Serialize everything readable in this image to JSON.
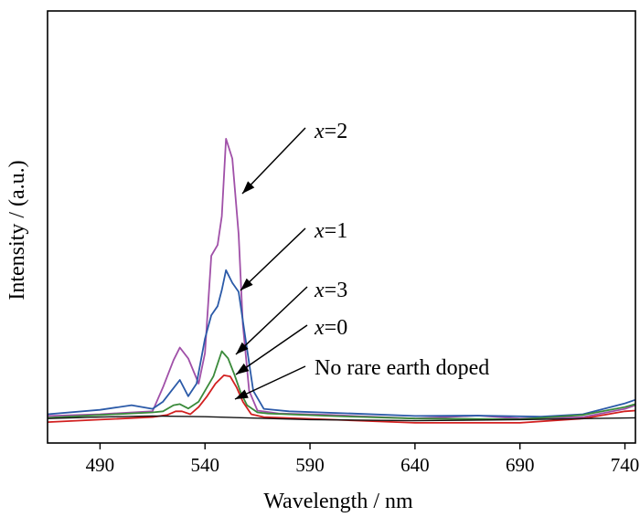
{
  "chart_data": {
    "type": "line",
    "xlabel": "Wavelength / nm",
    "ylabel": "Intensity / (a.u.)",
    "xlim": [
      465,
      745
    ],
    "ylim": [
      0,
      120
    ],
    "xticks": [
      490,
      540,
      590,
      640,
      690,
      740
    ],
    "grid": false,
    "legend": "none",
    "series": [
      {
        "name": "x=2",
        "color": "#a050a8",
        "x": [
          465,
          490,
          515,
          520,
          525,
          528,
          532,
          537,
          540,
          543,
          546,
          548,
          550,
          553,
          556,
          558,
          561,
          565,
          575,
          600,
          640,
          670,
          690,
          720,
          740,
          745
        ],
        "y": [
          7.5,
          8.0,
          8.8,
          15.5,
          23.0,
          26.5,
          23.5,
          16.5,
          25.0,
          52.0,
          55.0,
          63.0,
          84.5,
          79.0,
          58.0,
          33.0,
          14.5,
          9.0,
          8.2,
          7.8,
          6.8,
          7.6,
          6.8,
          7.2,
          9.5,
          10.5
        ]
      },
      {
        "name": "x=1",
        "color": "#2b5aa8",
        "x": [
          465,
          490,
          505,
          515,
          520,
          524,
          528,
          532,
          536,
          540,
          543,
          546,
          548,
          550,
          553,
          556,
          559,
          563,
          568,
          580,
          610,
          640,
          670,
          700,
          720,
          740,
          745
        ],
        "y": [
          8.0,
          9.2,
          10.5,
          9.5,
          11.5,
          14.5,
          17.5,
          13.0,
          16.5,
          29.0,
          35.5,
          38.0,
          42.5,
          48.0,
          44.5,
          42.0,
          30.0,
          14.5,
          9.5,
          8.8,
          8.2,
          7.5,
          7.6,
          7.3,
          8.0,
          11.0,
          12.0
        ]
      },
      {
        "name": "x=3",
        "color": "#3a8a3a",
        "x": [
          465,
          490,
          515,
          520,
          525,
          528,
          532,
          537,
          540,
          544,
          548,
          551,
          554,
          557,
          560,
          565,
          570,
          600,
          640,
          690,
          720,
          740,
          745
        ],
        "y": [
          7.0,
          7.8,
          8.5,
          8.8,
          10.5,
          10.8,
          9.6,
          11.5,
          14.5,
          18.5,
          25.5,
          23.5,
          19.0,
          14.0,
          10.5,
          8.5,
          8.2,
          7.5,
          6.8,
          6.6,
          7.8,
          10.0,
          10.8
        ]
      },
      {
        "name": "x=0",
        "color": "#d22020",
        "x": [
          465,
          490,
          515,
          522,
          526,
          529,
          533,
          537,
          541,
          545,
          549,
          552,
          555,
          558,
          562,
          568,
          600,
          640,
          690,
          720,
          740,
          745
        ],
        "y": [
          5.8,
          6.5,
          7.2,
          7.8,
          8.8,
          8.8,
          8.0,
          10.0,
          13.0,
          16.5,
          18.8,
          18.5,
          15.5,
          11.5,
          8.0,
          7.2,
          6.5,
          5.6,
          5.6,
          6.8,
          8.8,
          9.0
        ]
      },
      {
        "name": "No rare earth doped",
        "color": "#111111",
        "x": [
          465,
          490,
          515,
          540,
          565,
          590,
          640,
          690,
          745
        ],
        "y": [
          6.8,
          7.2,
          7.5,
          7.3,
          6.9,
          6.5,
          6.2,
          6.5,
          7.0
        ]
      }
    ],
    "annotations": [
      {
        "prefix": "x",
        "text": "=2"
      },
      {
        "prefix": "x",
        "text": "=1"
      },
      {
        "prefix": "x",
        "text": "=3"
      },
      {
        "prefix": "x",
        "text": "=0"
      },
      {
        "prefix": "",
        "text": "No rare earth doped"
      }
    ]
  }
}
